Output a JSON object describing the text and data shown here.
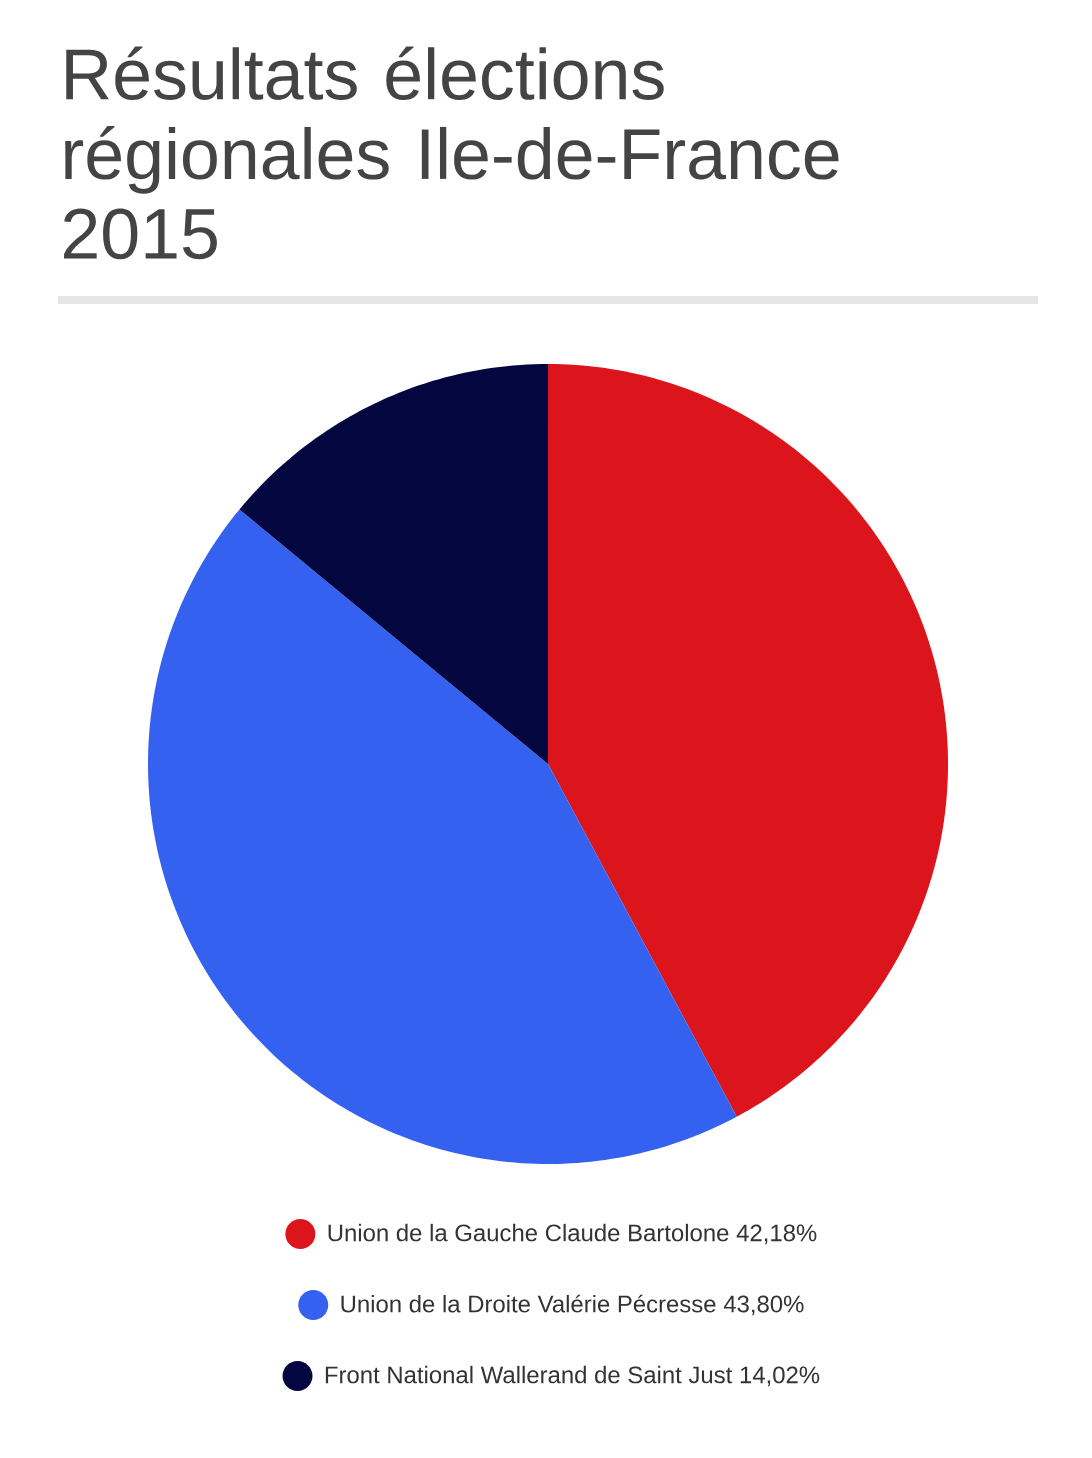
{
  "chart_data": {
    "type": "pie",
    "title": "Résultats élections régionales Ile-de-France 2015",
    "categories": [
      "Union de la Gauche Claude Bartolone",
      "Union de la Droite Valérie Pécresse",
      "Front National Wallerand de Saint Just"
    ],
    "values": [
      42.18,
      43.8,
      14.02
    ],
    "colors": [
      "#dc141c",
      "#3461f0",
      "#03063f"
    ],
    "value_labels": [
      "42,18%",
      "43,80%",
      "14,02%"
    ],
    "legend": "bottom"
  }
}
